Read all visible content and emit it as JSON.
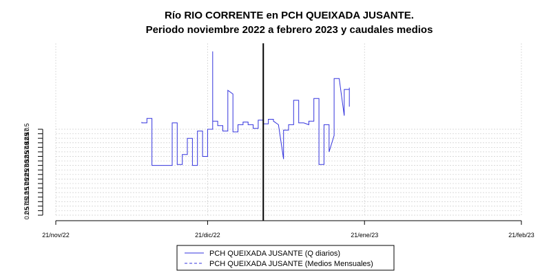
{
  "chart_data": {
    "type": "line",
    "title": "Río RIO CORRENTE en PCH QUEIXADA JUSANTE.",
    "subtitle": "Periodo noviembre 2022 a febrero 2023 y caudales medios",
    "xlabel": "",
    "ylabel": "",
    "x_range": [
      "2022-11-21",
      "2023-02-21"
    ],
    "x_ticks": [
      "21/nov/22",
      "21/dic/22",
      "21/ene/23",
      "21/feb/23"
    ],
    "x_tick_dates": [
      "2022-11-21",
      "2022-12-21",
      "2023-01-21",
      "2023-02-21"
    ],
    "y_ticks": [
      "0.0",
      "2.5",
      "5.0",
      "7.5",
      "10.0",
      "12.5",
      "15.0",
      "17.5",
      "20.0",
      "22.5",
      "25.0",
      "27.5",
      "30.0",
      "32.5",
      "35.0",
      "37.5",
      "40.0",
      "42.5",
      "45.0",
      "47.5"
    ],
    "y_tick_values": [
      0,
      2.5,
      5,
      7.5,
      10,
      12.5,
      15,
      17.5,
      20,
      22.5,
      25,
      27.5,
      30,
      32.5,
      35,
      37.5,
      40,
      42.5,
      45,
      47.5
    ],
    "ylim": [
      0,
      95
    ],
    "grid": true,
    "legend_position": "bottom",
    "event_line_date": "2023-01-01",
    "colors": {
      "series": "#3333dd",
      "event_line": "#000000",
      "grid": "#cccccc"
    },
    "series": [
      {
        "name": "PCH QUEIXADA JUSANTE (Q diarios)",
        "style": "solid",
        "points": [
          [
            "2022-12-08",
            51.5
          ],
          [
            "2022-12-08",
            51.0
          ],
          [
            "2022-12-09",
            51.0
          ],
          [
            "2022-12-09",
            53.5
          ],
          [
            "2022-12-10",
            53.5
          ],
          [
            "2022-12-10",
            27.5
          ],
          [
            "2022-12-14",
            27.5
          ],
          [
            "2022-12-14",
            51.0
          ],
          [
            "2022-12-15",
            51.0
          ],
          [
            "2022-12-15",
            28.0
          ],
          [
            "2022-12-16",
            28.0
          ],
          [
            "2022-12-16",
            33.5
          ],
          [
            "2022-12-17",
            33.5
          ],
          [
            "2022-12-17",
            42.5
          ],
          [
            "2022-12-18",
            42.5
          ],
          [
            "2022-12-18",
            27.5
          ],
          [
            "2022-12-19",
            27.5
          ],
          [
            "2022-12-19",
            46.5
          ],
          [
            "2022-12-20",
            46.5
          ],
          [
            "2022-12-20",
            32.5
          ],
          [
            "2022-12-21",
            32.5
          ],
          [
            "2022-12-21",
            47.5
          ],
          [
            "2022-12-22",
            47.5
          ],
          [
            "2022-12-22",
            90.5
          ],
          [
            "2022-12-22",
            52.0
          ],
          [
            "2022-12-23",
            52.0
          ],
          [
            "2022-12-23",
            49.5
          ],
          [
            "2022-12-24",
            49.5
          ],
          [
            "2022-12-24",
            46.5
          ],
          [
            "2022-12-25",
            46.5
          ],
          [
            "2022-12-25",
            69.0
          ],
          [
            "2022-12-26",
            67.0
          ],
          [
            "2022-12-26",
            46.0
          ],
          [
            "2022-12-27",
            46.0
          ],
          [
            "2022-12-27",
            50.0
          ],
          [
            "2022-12-28",
            50.0
          ],
          [
            "2022-12-28",
            51.5
          ],
          [
            "2022-12-29",
            51.5
          ],
          [
            "2022-12-29",
            50.0
          ],
          [
            "2022-12-30",
            50.0
          ],
          [
            "2022-12-30",
            48.0
          ],
          [
            "2022-12-31",
            48.0
          ],
          [
            "2022-12-31",
            52.5
          ],
          [
            "2023-01-01",
            52.5
          ],
          [
            "2023-01-01",
            50.5
          ],
          [
            "2023-01-02",
            50.5
          ],
          [
            "2023-01-02",
            53.0
          ],
          [
            "2023-01-03",
            53.0
          ],
          [
            "2023-01-03",
            52.0
          ],
          [
            "2023-01-04",
            50.0
          ],
          [
            "2023-01-05",
            31.0
          ],
          [
            "2023-01-05",
            47.0
          ],
          [
            "2023-01-06",
            47.0
          ],
          [
            "2023-01-06",
            50.0
          ],
          [
            "2023-01-07",
            50.0
          ],
          [
            "2023-01-07",
            63.5
          ],
          [
            "2023-01-08",
            63.5
          ],
          [
            "2023-01-08",
            51.0
          ],
          [
            "2023-01-09",
            51.0
          ],
          [
            "2023-01-10",
            50.0
          ],
          [
            "2023-01-10",
            52.0
          ],
          [
            "2023-01-11",
            52.0
          ],
          [
            "2023-01-11",
            64.5
          ],
          [
            "2023-01-12",
            64.5
          ],
          [
            "2023-01-12",
            28.0
          ],
          [
            "2023-01-13",
            28.0
          ],
          [
            "2023-01-13",
            50.0
          ],
          [
            "2023-01-14",
            50.0
          ],
          [
            "2023-01-14",
            35.0
          ],
          [
            "2023-01-15",
            44.0
          ],
          [
            "2023-01-15",
            75.5
          ],
          [
            "2023-01-16",
            75.5
          ],
          [
            "2023-01-17",
            55.0
          ],
          [
            "2023-01-17",
            69.5
          ],
          [
            "2023-01-18",
            69.5
          ],
          [
            "2023-01-18",
            60.0
          ],
          [
            "2023-01-18",
            70.5
          ]
        ]
      },
      {
        "name": "PCH QUEIXADA JUSANTE (Medios Mensuales)",
        "style": "dashed",
        "points": []
      }
    ]
  }
}
